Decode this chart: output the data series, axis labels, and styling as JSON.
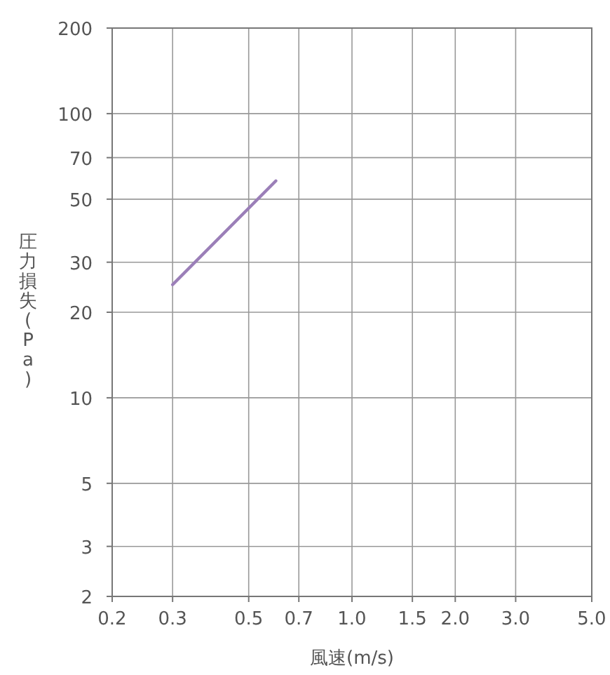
{
  "chart_data": {
    "type": "line",
    "xlabel": "風速(m/s)",
    "ylabel": "圧力損失(Pa)",
    "log": "xy",
    "grid": true,
    "xlim": [
      0.2,
      5.0
    ],
    "ylim": [
      2,
      200
    ],
    "xticks": [
      0.2,
      0.3,
      0.5,
      0.7,
      {
        "value": 1,
        "label": "1.0"
      },
      1.5,
      {
        "value": 2,
        "label": "2.0"
      },
      {
        "value": 3,
        "label": "3.0"
      },
      {
        "value": 5,
        "label": "5.0"
      }
    ],
    "yticks": [
      2,
      3,
      5,
      10,
      20,
      30,
      50,
      70,
      100,
      200
    ],
    "series": [
      {
        "color": "#9b7fb8",
        "x": [
          0.3,
          0.6
        ],
        "values": [
          25,
          58
        ]
      }
    ]
  }
}
